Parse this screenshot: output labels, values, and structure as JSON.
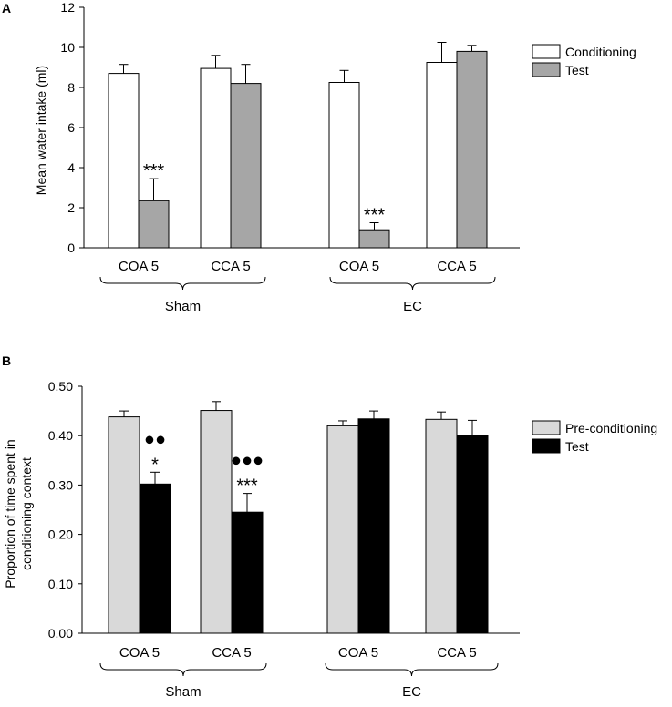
{
  "chart_data": [
    {
      "type": "bar",
      "panel": "A",
      "ylabel": "Mean water intake (ml)",
      "ylim": [
        0,
        12
      ],
      "yticks": [
        "0",
        "2",
        "4",
        "6",
        "8",
        "10",
        "12"
      ],
      "categories": [
        "COA 5",
        "CCA 5",
        "COA 5",
        "CCA 5"
      ],
      "groups": [
        "Sham",
        "EC"
      ],
      "series": [
        {
          "name": "Conditioning",
          "color": "#ffffff",
          "values": [
            8.7,
            8.95,
            8.25,
            9.25
          ],
          "errors": [
            0.45,
            0.65,
            0.6,
            1.0
          ]
        },
        {
          "name": "Test",
          "color": "#a6a6a6",
          "values": [
            2.35,
            8.2,
            0.9,
            9.8
          ],
          "errors": [
            1.1,
            0.95,
            0.35,
            0.3
          ]
        }
      ],
      "annotations": [
        {
          "label": "***",
          "category": 0,
          "series": 1,
          "marker": "stars"
        },
        {
          "label": "***",
          "category": 2,
          "series": 1,
          "marker": "stars"
        }
      ]
    },
    {
      "type": "bar",
      "panel": "B",
      "ylabel_lines": [
        "Proportion of time spent in",
        "conditioning context"
      ],
      "ylim": [
        0,
        0.5
      ],
      "yticks": [
        "0.00",
        "0.10",
        "0.20",
        "0.30",
        "0.40",
        "0.50"
      ],
      "categories": [
        "COA 5",
        "CCA 5",
        "COA 5",
        "CCA 5"
      ],
      "groups": [
        "Sham",
        "EC"
      ],
      "series": [
        {
          "name": "Pre-conditioning",
          "color": "#d9d9d9",
          "values": [
            0.438,
            0.451,
            0.42,
            0.433
          ],
          "errors": [
            0.012,
            0.018,
            0.01,
            0.015
          ]
        },
        {
          "name": "Test",
          "color": "#000000",
          "values": [
            0.302,
            0.245,
            0.434,
            0.401
          ],
          "errors": [
            0.024,
            0.038,
            0.016,
            0.03
          ]
        }
      ],
      "annotations": [
        {
          "label": "*",
          "category": 0,
          "series": 1,
          "marker": "stars"
        },
        {
          "label": "●●",
          "category": 0,
          "series": 1,
          "marker": "dots"
        },
        {
          "label": "***",
          "category": 1,
          "series": 1,
          "marker": "stars"
        },
        {
          "label": "●●●",
          "category": 1,
          "series": 1,
          "marker": "dots"
        }
      ]
    }
  ]
}
